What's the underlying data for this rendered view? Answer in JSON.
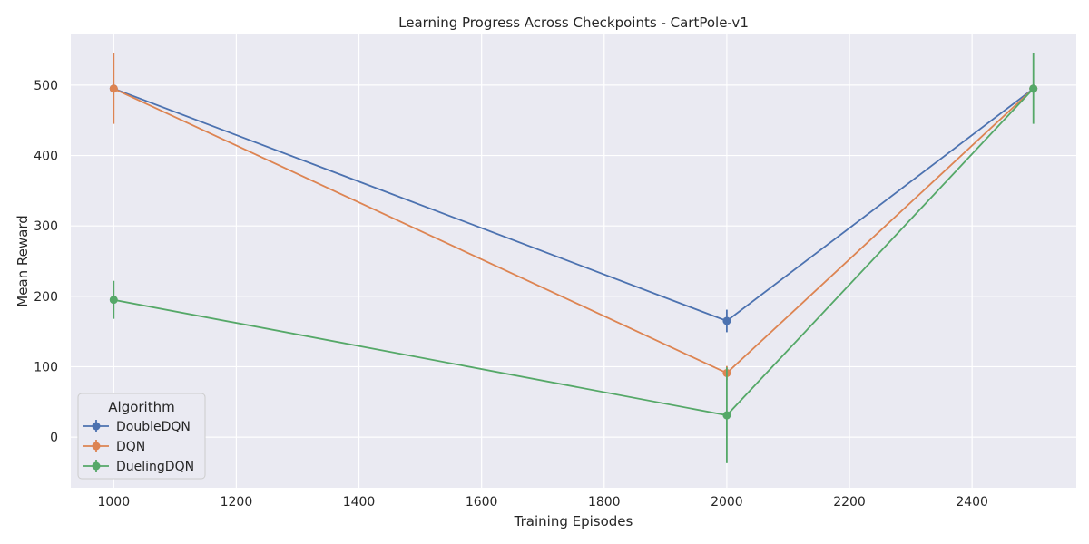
{
  "chart_data": {
    "type": "line",
    "title": "Learning Progress Across Checkpoints - CartPole-v1",
    "xlabel": "Training Episodes",
    "ylabel": "Mean Reward",
    "xlim": [
      930,
      2570
    ],
    "ylim": [
      -72,
      572
    ],
    "xticks": [
      1000,
      1200,
      1400,
      1600,
      1800,
      2000,
      2200,
      2400
    ],
    "yticks": [
      0,
      100,
      200,
      300,
      400,
      500
    ],
    "grid": true,
    "legend": {
      "title": "Algorithm",
      "placement": "lower-left"
    },
    "series": [
      {
        "name": "DoubleDQN",
        "color": "#4c72b0",
        "x": [
          1000,
          2000,
          2500
        ],
        "y": [
          495,
          165,
          495
        ],
        "err": [
          0,
          16,
          0
        ]
      },
      {
        "name": "DQN",
        "color": "#dd8452",
        "x": [
          1000,
          2000,
          2500
        ],
        "y": [
          495,
          91,
          495
        ],
        "err": [
          50,
          10,
          0
        ]
      },
      {
        "name": "DuelingDQN",
        "color": "#55a868",
        "x": [
          1000,
          2000,
          2500
        ],
        "y": [
          195,
          31,
          495
        ],
        "err": [
          27,
          68,
          50
        ]
      }
    ]
  }
}
